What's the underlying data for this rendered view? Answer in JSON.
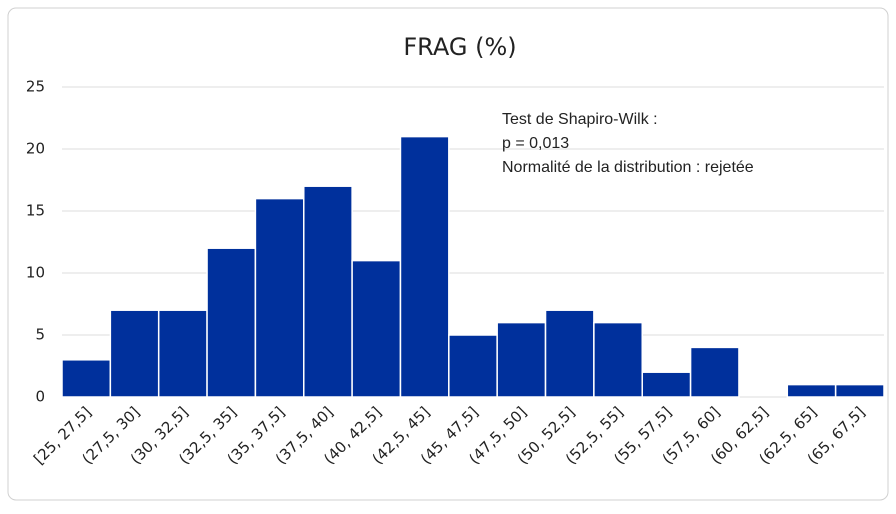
{
  "chart_data": {
    "type": "bar",
    "title": "FRAG (%)",
    "categories": [
      "[25, 27,5]",
      "(27,5, 30]",
      "(30, 32,5]",
      "(32,5, 35]",
      "(35, 37,5]",
      "(37,5, 40]",
      "(40, 42,5]",
      "(42,5, 45]",
      "(45, 47,5]",
      "(47,5, 50]",
      "(50, 52,5]",
      "(52,5, 55]",
      "(55, 57,5]",
      "(57,5, 60]",
      "(60, 62,5]",
      "(62,5, 65]",
      "(65, 67,5]"
    ],
    "values": [
      3,
      7,
      7,
      12,
      16,
      17,
      11,
      21,
      5,
      6,
      7,
      6,
      2,
      4,
      0,
      1,
      1
    ],
    "color": "#00309c",
    "ylim": [
      0,
      25
    ],
    "yticks": [
      0,
      5,
      10,
      15,
      20,
      25
    ],
    "grid": true,
    "annotations": [
      "Test de Shapiro-Wilk :",
      "p = 0,013",
      "Normalité de la distribution : rejetée"
    ]
  }
}
